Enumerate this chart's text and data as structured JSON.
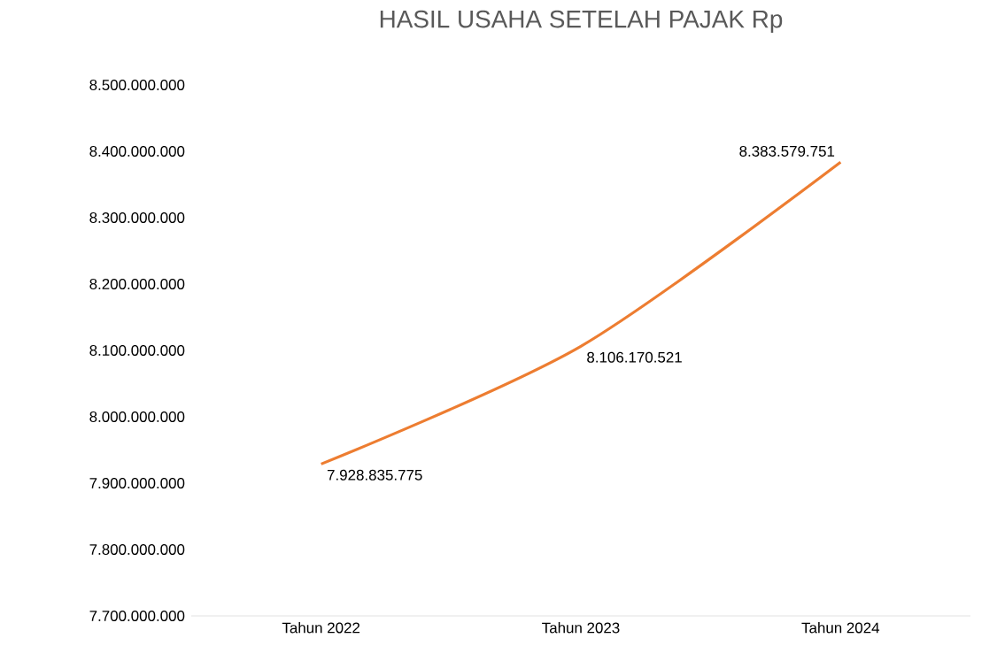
{
  "chart_data": {
    "type": "line",
    "title": "HASIL USAHA SETELAH PAJAK Rp",
    "categories": [
      "Tahun 2022",
      "Tahun 2023",
      "Tahun 2024"
    ],
    "series": [
      {
        "color": "#ed7d31",
        "values": [
          7928835775,
          8106170521,
          8383579751
        ],
        "value_labels": [
          "7.928.835.775",
          "8.106.170.521",
          "8.383.579.751"
        ]
      }
    ],
    "ylim": [
      7700000000,
      8500000000
    ],
    "yticks": [
      {
        "value": 7700000000,
        "label": "7.700.000.000"
      },
      {
        "value": 7800000000,
        "label": "7.800.000.000"
      },
      {
        "value": 7900000000,
        "label": "7.900.000.000"
      },
      {
        "value": 8000000000,
        "label": "8.000.000.000"
      },
      {
        "value": 8100000000,
        "label": "8.100.000.000"
      },
      {
        "value": 8200000000,
        "label": "8.200.000.000"
      },
      {
        "value": 8300000000,
        "label": "8.300.000.000"
      },
      {
        "value": 8400000000,
        "label": "8.400.000.000"
      },
      {
        "value": 8500000000,
        "label": "8.500.000.000"
      }
    ],
    "marker": "none",
    "line_style": "solid"
  }
}
